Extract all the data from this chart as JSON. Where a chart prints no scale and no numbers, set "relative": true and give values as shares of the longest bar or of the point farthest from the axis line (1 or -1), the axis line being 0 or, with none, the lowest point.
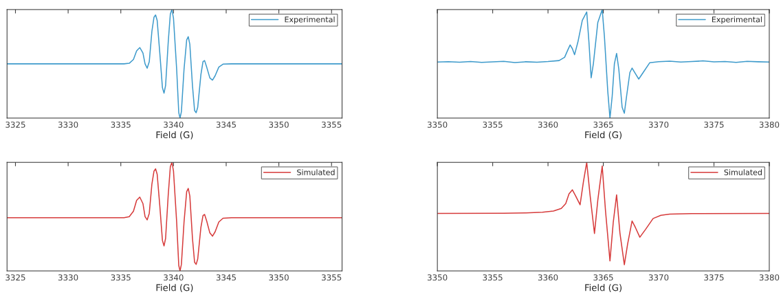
{
  "chart_data": [
    {
      "type": "line",
      "xlabel": "Field (G)",
      "relative": true,
      "xlim": [
        3324.2,
        3356
      ],
      "xticks": [
        3325,
        3330,
        3335,
        3340,
        3345,
        3350,
        3355
      ],
      "tick_labels": "x",
      "grid": false,
      "legend": "top right",
      "series": [
        {
          "name": "Experimental",
          "color": "#3d9acb",
          "x": [
            3324.2,
            3335.3,
            3335.8,
            3336.2,
            3336.5,
            3336.8,
            3337.1,
            3337.3,
            3337.5,
            3337.7,
            3337.95,
            3338.15,
            3338.3,
            3338.45,
            3338.7,
            3338.95,
            3339.1,
            3339.25,
            3339.5,
            3339.7,
            3339.85,
            3340.0,
            3340.3,
            3340.5,
            3340.62,
            3340.75,
            3341.0,
            3341.25,
            3341.4,
            3341.55,
            3341.8,
            3342.0,
            3342.15,
            3342.3,
            3342.6,
            3342.8,
            3342.95,
            3343.15,
            3343.45,
            3343.7,
            3343.95,
            3344.3,
            3344.7,
            3345.5,
            3356
          ],
          "values": [
            0.5,
            0.5,
            0.505,
            0.54,
            0.62,
            0.65,
            0.6,
            0.5,
            0.46,
            0.52,
            0.8,
            0.93,
            0.95,
            0.9,
            0.6,
            0.28,
            0.23,
            0.3,
            0.7,
            0.96,
            1.0,
            0.92,
            0.45,
            0.05,
            0.0,
            0.06,
            0.45,
            0.72,
            0.75,
            0.68,
            0.3,
            0.07,
            0.05,
            0.1,
            0.4,
            0.52,
            0.53,
            0.47,
            0.37,
            0.35,
            0.39,
            0.47,
            0.497,
            0.5,
            0.5
          ]
        }
      ]
    },
    {
      "type": "line",
      "xlabel": "Field (G)",
      "relative": true,
      "xlim": [
        3350,
        3380
      ],
      "xticks": [
        3350,
        3355,
        3360,
        3365,
        3370,
        3375,
        3380
      ],
      "tick_labels": "x",
      "grid": false,
      "legend": "top right",
      "series": [
        {
          "name": "Experimental",
          "color": "#3d9acb",
          "x": [
            3350,
            3351,
            3352,
            3353,
            3354,
            3355,
            3356,
            3357,
            3358,
            3359,
            3360,
            3361,
            3361.5,
            3361.8,
            3362.0,
            3362.2,
            3362.4,
            3362.7,
            3363.1,
            3363.5,
            3363.7,
            3363.9,
            3364.1,
            3364.5,
            3364.9,
            3365.1,
            3365.4,
            3365.6,
            3365.8,
            3366.0,
            3366.2,
            3366.4,
            3366.7,
            3366.9,
            3367.1,
            3367.4,
            3367.6,
            3367.9,
            3368.2,
            3368.6,
            3369.2,
            3370,
            3371,
            3372,
            3373,
            3374,
            3375,
            3376,
            3377,
            3378,
            3379,
            3380
          ],
          "values": [
            0.517,
            0.52,
            0.515,
            0.522,
            0.513,
            0.518,
            0.523,
            0.512,
            0.519,
            0.515,
            0.521,
            0.53,
            0.56,
            0.63,
            0.674,
            0.64,
            0.584,
            0.7,
            0.9,
            0.978,
            0.7,
            0.371,
            0.5,
            0.88,
            1.0,
            0.75,
            0.25,
            0.0,
            0.2,
            0.5,
            0.596,
            0.45,
            0.1,
            0.045,
            0.2,
            0.42,
            0.461,
            0.41,
            0.36,
            0.42,
            0.511,
            0.52,
            0.525,
            0.516,
            0.521,
            0.527,
            0.518,
            0.522,
            0.514,
            0.523,
            0.519,
            0.517
          ]
        }
      ]
    },
    {
      "type": "line",
      "xlabel": "Field (G)",
      "relative": true,
      "xlim": [
        3324.2,
        3356
      ],
      "xticks": [
        3325,
        3330,
        3335,
        3340,
        3345,
        3350,
        3355
      ],
      "tick_labels": "x",
      "grid": false,
      "legend": "top right",
      "series": [
        {
          "name": "Simulated",
          "color": "#d63a3a",
          "x": [
            3324.2,
            3335.3,
            3335.8,
            3336.2,
            3336.5,
            3336.8,
            3337.1,
            3337.3,
            3337.5,
            3337.7,
            3337.95,
            3338.15,
            3338.3,
            3338.45,
            3338.7,
            3338.95,
            3339.1,
            3339.25,
            3339.5,
            3339.7,
            3339.85,
            3340.0,
            3340.3,
            3340.5,
            3340.62,
            3340.75,
            3341.0,
            3341.25,
            3341.4,
            3341.55,
            3341.8,
            3342.0,
            3342.15,
            3342.3,
            3342.6,
            3342.8,
            3342.95,
            3343.15,
            3343.45,
            3343.7,
            3343.95,
            3344.3,
            3344.7,
            3345.5,
            3356
          ],
          "values": [
            0.49,
            0.49,
            0.5,
            0.55,
            0.65,
            0.68,
            0.62,
            0.5,
            0.47,
            0.53,
            0.8,
            0.92,
            0.94,
            0.89,
            0.6,
            0.28,
            0.23,
            0.3,
            0.7,
            0.96,
            1.0,
            0.92,
            0.45,
            0.05,
            0.0,
            0.06,
            0.45,
            0.73,
            0.76,
            0.69,
            0.3,
            0.08,
            0.06,
            0.11,
            0.4,
            0.51,
            0.52,
            0.46,
            0.35,
            0.32,
            0.36,
            0.45,
            0.485,
            0.49,
            0.49
          ]
        }
      ]
    },
    {
      "type": "line",
      "xlabel": "Field (G)",
      "relative": true,
      "xlim": [
        3350,
        3380
      ],
      "xticks": [
        3350,
        3355,
        3360,
        3365,
        3370,
        3375,
        3380
      ],
      "tick_labels": "x",
      "grid": false,
      "legend": "top right",
      "series": [
        {
          "name": "Simulated",
          "color": "#d63a3a",
          "x": [
            3350,
            3356,
            3358,
            3359.5,
            3360.5,
            3361.2,
            3361.6,
            3361.9,
            3362.2,
            3362.5,
            3362.9,
            3363.2,
            3363.5,
            3363.8,
            3364.2,
            3364.5,
            3364.9,
            3365.2,
            3365.6,
            3365.9,
            3366.2,
            3366.5,
            3366.9,
            3367.2,
            3367.6,
            3367.9,
            3368.3,
            3368.8,
            3369.5,
            3370.2,
            3371,
            3373,
            3380
          ],
          "values": [
            0.529,
            0.531,
            0.534,
            0.541,
            0.552,
            0.575,
            0.62,
            0.71,
            0.747,
            0.69,
            0.609,
            0.82,
            1.0,
            0.7,
            0.345,
            0.65,
            0.966,
            0.55,
            0.092,
            0.45,
            0.701,
            0.35,
            0.057,
            0.25,
            0.46,
            0.4,
            0.31,
            0.38,
            0.483,
            0.512,
            0.523,
            0.528,
            0.529
          ]
        }
      ]
    }
  ]
}
